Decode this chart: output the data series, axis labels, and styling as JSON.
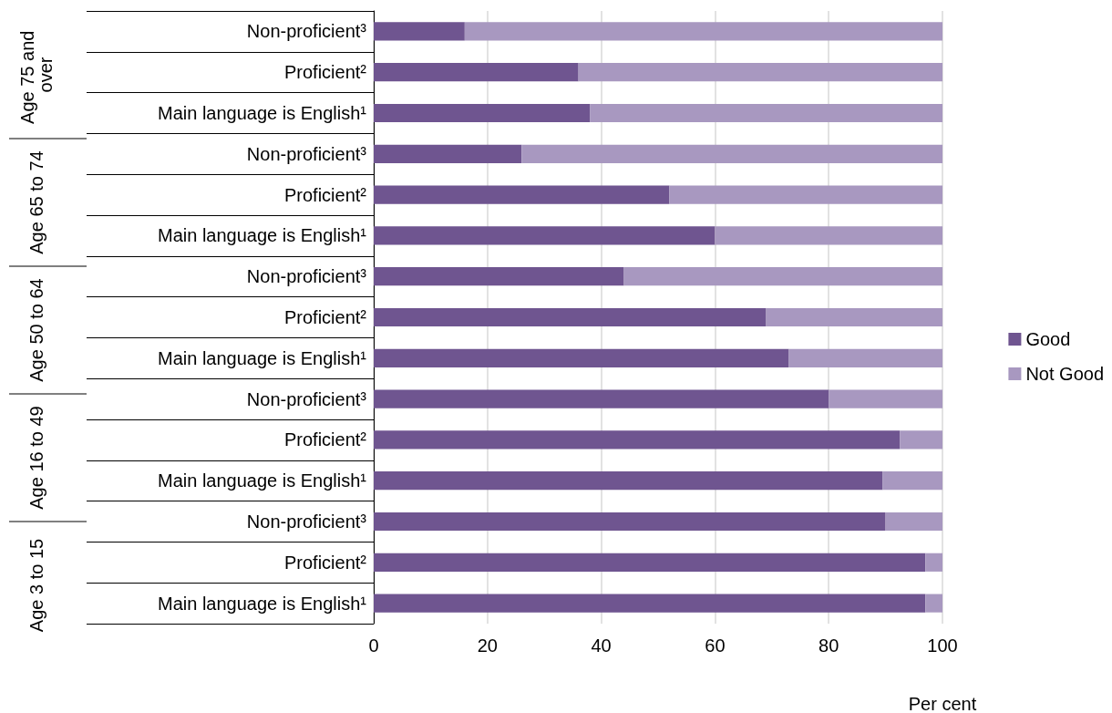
{
  "chart_data": {
    "type": "bar",
    "orientation": "horizontal",
    "stacked": true,
    "categories": [
      "Non-proficient³",
      "Proficient²",
      "Main language is English¹",
      "Non-proficient³",
      "Proficient²",
      "Main language is English¹",
      "Non-proficient³",
      "Proficient²",
      "Main language is English¹",
      "Non-proficient³",
      "Proficient²",
      "Main language is English¹",
      "Non-proficient³",
      "Proficient²",
      "Main language is English¹"
    ],
    "series": [
      {
        "name": "Good",
        "color": "#6f5590",
        "values": [
          16,
          36,
          38,
          26,
          52,
          60,
          44,
          69,
          73,
          80,
          92.5,
          89.5,
          90,
          97,
          97
        ]
      },
      {
        "name": "Not Good",
        "color": "#a898c0",
        "values": [
          84,
          64,
          62,
          74,
          48,
          40,
          56,
          31,
          27,
          20,
          7.5,
          10.5,
          10,
          3,
          3
        ]
      }
    ],
    "annotations": [
      "Age 75 and over",
      "Age 65 to 74",
      "Age 50 to 64",
      "Age 16 to 49",
      "Age 3 to 15"
    ],
    "xlabel": "Per cent",
    "xlim": [
      0,
      100
    ],
    "xticks": [
      0,
      20,
      40,
      60,
      80,
      100
    ],
    "grid": "x",
    "legend": "right"
  }
}
